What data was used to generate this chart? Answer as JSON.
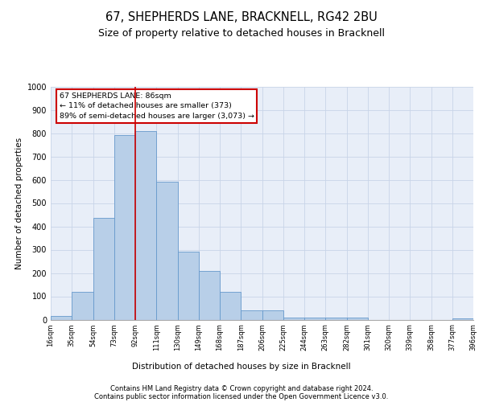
{
  "title": "67, SHEPHERDS LANE, BRACKNELL, RG42 2BU",
  "subtitle": "Size of property relative to detached houses in Bracknell",
  "xlabel": "Distribution of detached houses by size in Bracknell",
  "ylabel": "Number of detached properties",
  "categories": [
    "16sqm",
    "35sqm",
    "54sqm",
    "73sqm",
    "92sqm",
    "111sqm",
    "130sqm",
    "149sqm",
    "168sqm",
    "187sqm",
    "206sqm",
    "225sqm",
    "244sqm",
    "263sqm",
    "282sqm",
    "301sqm",
    "320sqm",
    "339sqm",
    "358sqm",
    "377sqm",
    "396sqm"
  ],
  "values": [
    15,
    120,
    435,
    790,
    808,
    590,
    290,
    210,
    120,
    40,
    40,
    10,
    10,
    7,
    10,
    0,
    0,
    0,
    0,
    5
  ],
  "bar_color": "#b8cfe8",
  "bar_edge_color": "#6699cc",
  "annotation_text": "67 SHEPHERDS LANE: 86sqm\n← 11% of detached houses are smaller (373)\n89% of semi-detached houses are larger (3,073) →",
  "annotation_box_color": "#ffffff",
  "annotation_box_edge": "#cc0000",
  "ylim": [
    0,
    1000
  ],
  "yticks": [
    0,
    100,
    200,
    300,
    400,
    500,
    600,
    700,
    800,
    900,
    1000
  ],
  "grid_color": "#c8d4e8",
  "bg_color": "#e8eef8",
  "footer1": "Contains HM Land Registry data © Crown copyright and database right 2024.",
  "footer2": "Contains public sector information licensed under the Open Government Licence v3.0."
}
